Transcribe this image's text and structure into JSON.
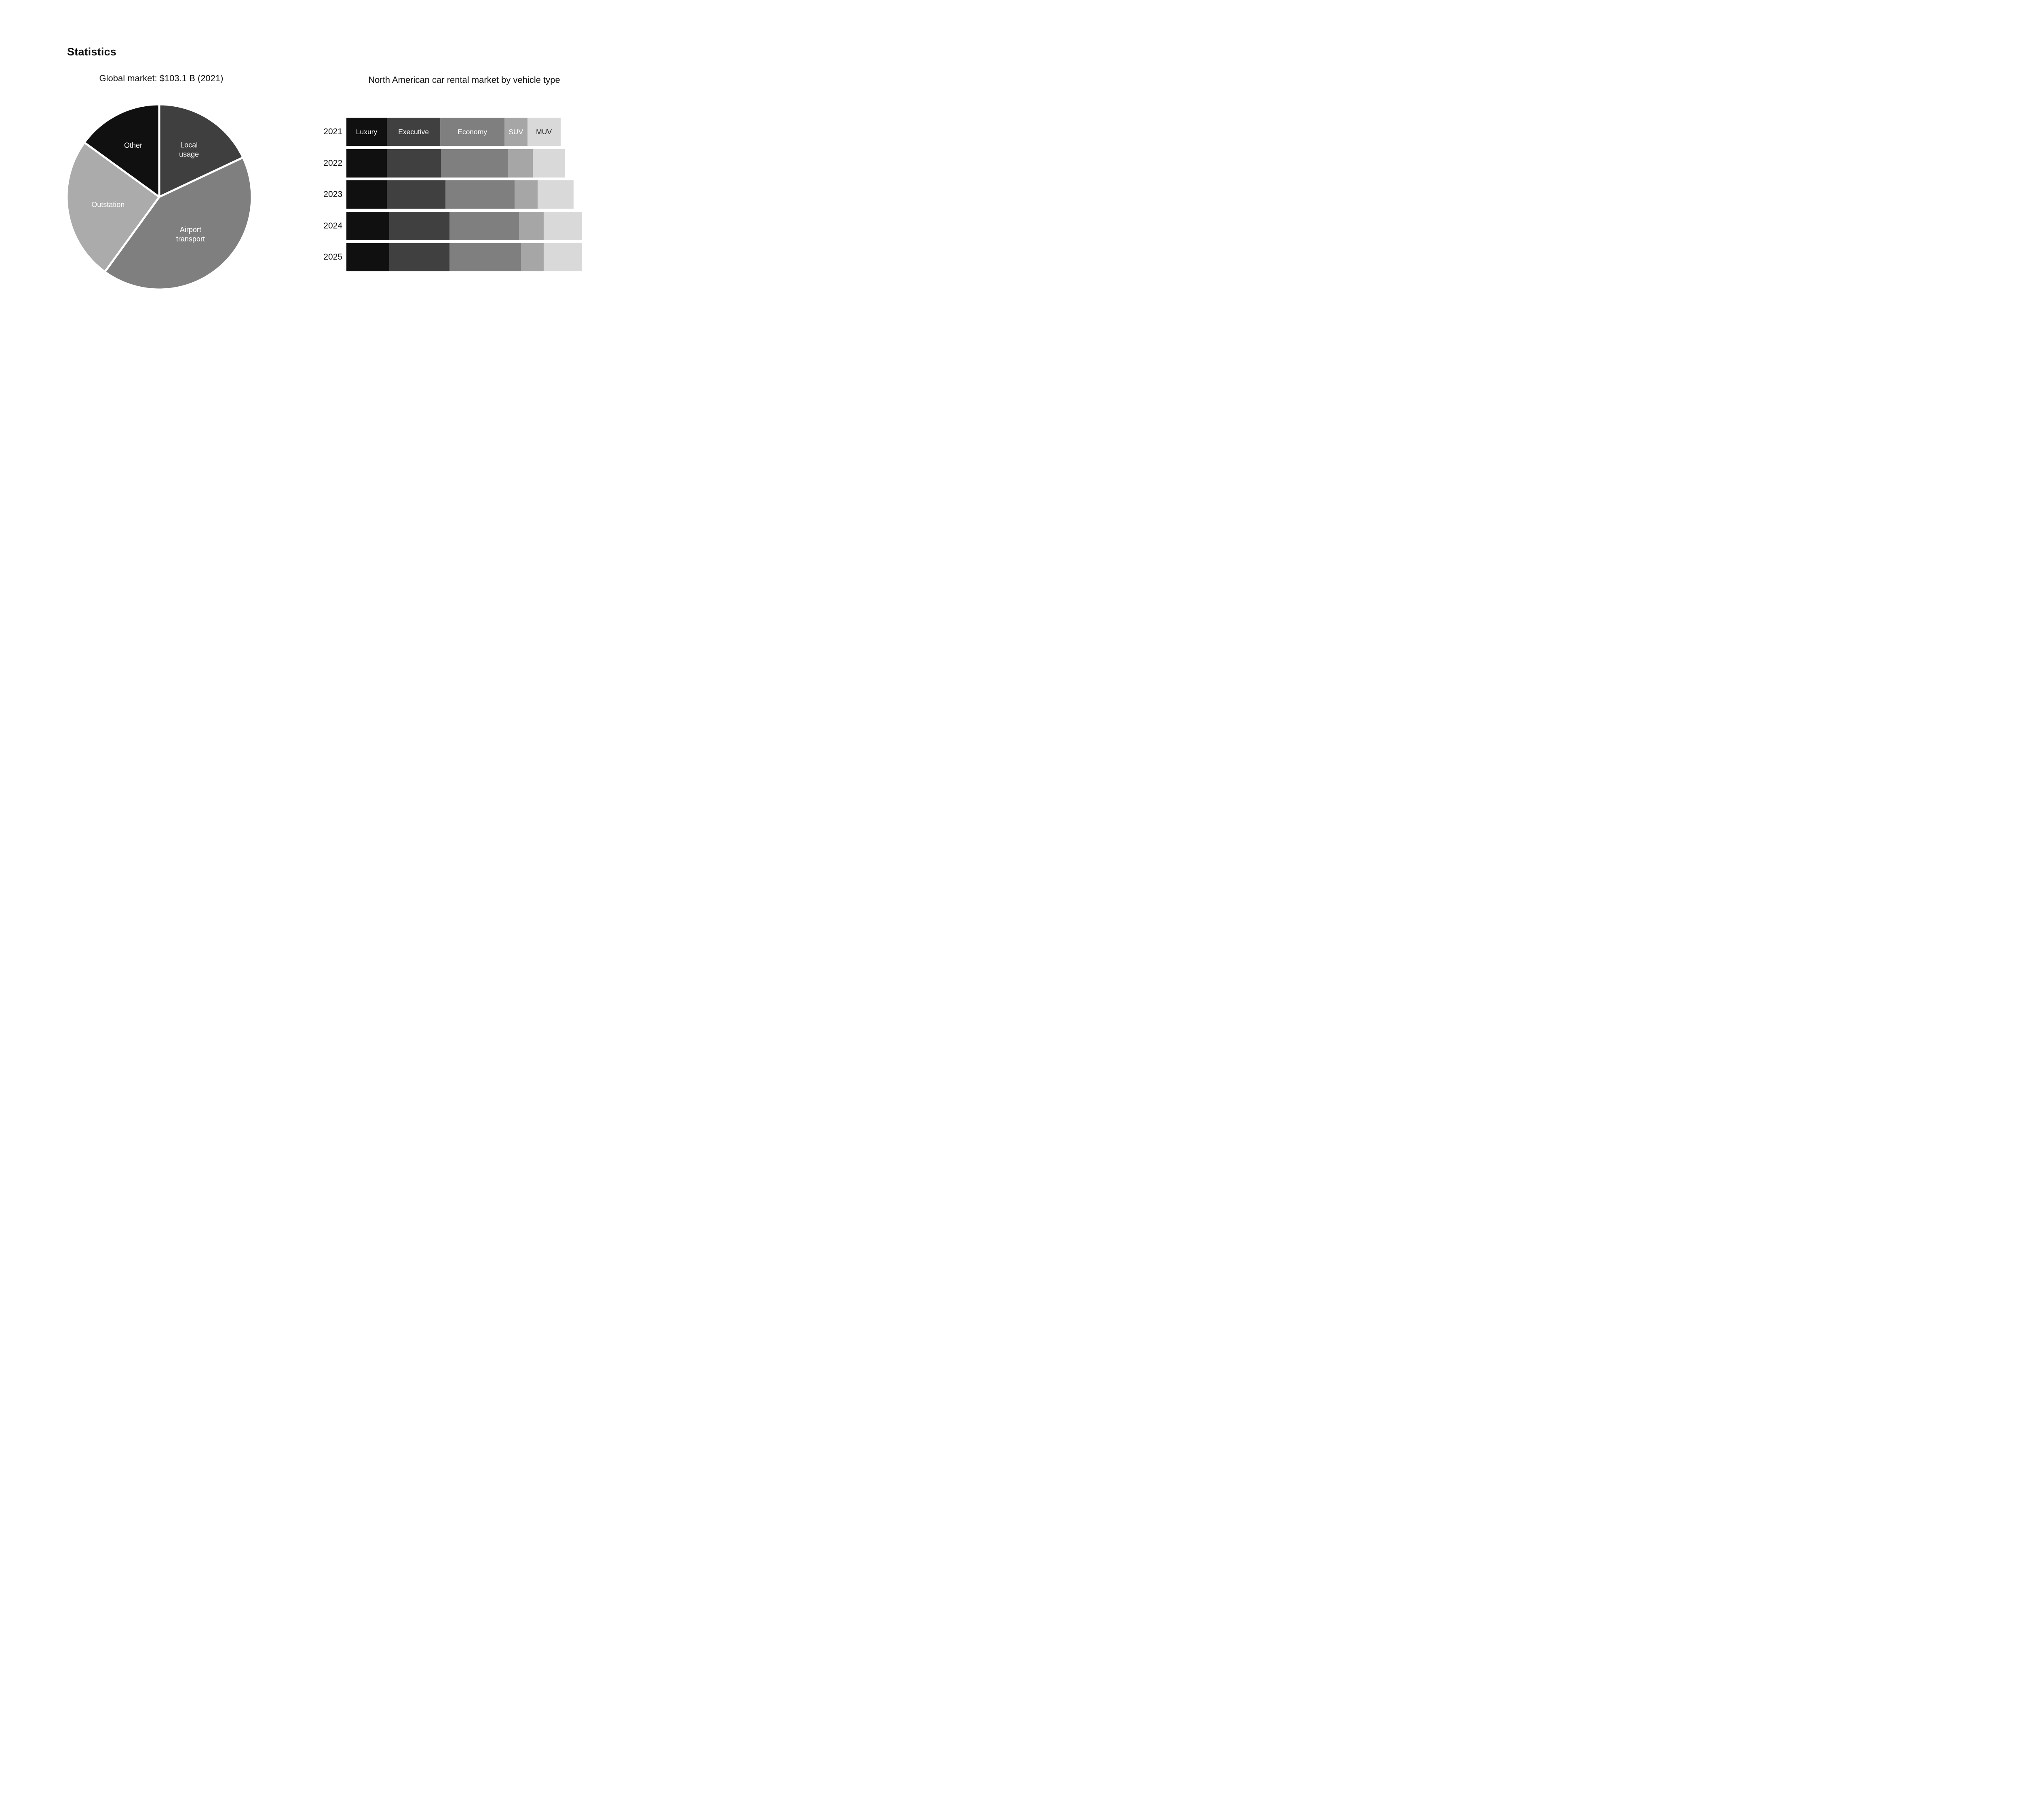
{
  "page": {
    "title": "Statistics",
    "background": "#ffffff"
  },
  "chart_data": [
    {
      "type": "pie",
      "title": "Global market: $103.1 B (2021)",
      "units": "percent share of global market, estimated from slice angles",
      "start_angle_deg_from_12_oclock": 0,
      "direction": "clockwise",
      "gap_color": "#ffffff",
      "slices": [
        {
          "label": "Local usage",
          "label_lines": [
            "Local",
            "usage"
          ],
          "value": 18,
          "color": "#3f3f3f",
          "label_color": "#ffffff",
          "label_radius_factor": 0.6
        },
        {
          "label": "Airport transport",
          "label_lines": [
            "Airport",
            "transport"
          ],
          "value": 42,
          "color": "#7f7f7f",
          "label_color": "#ffffff",
          "label_radius_factor": 0.53
        },
        {
          "label": "Outstation",
          "label_lines": [
            "Outstation"
          ],
          "value": 25,
          "color": "#ababab",
          "label_color": "#ffffff",
          "label_radius_factor": 0.56
        },
        {
          "label": "Other",
          "label_lines": [
            "Other"
          ],
          "value": 15,
          "color": "#101010",
          "label_color": "#ffffff",
          "label_radius_factor": 0.62
        }
      ]
    },
    {
      "type": "stacked_bar_horizontal",
      "title": "North American car rental market by vehicle type",
      "categories": [
        "2021",
        "2022",
        "2023",
        "2024",
        "2025"
      ],
      "units": "relative market size, 2021 total = 100, estimated from bar lengths (no numeric axis shown)",
      "legend": "none",
      "grid": "off",
      "series_labels_shown_on_row": "2021",
      "series": [
        {
          "name": "Luxury",
          "color": "#101010",
          "label_color": "#ffffff",
          "values": [
            18.9,
            18.9,
            18.9,
            20.0,
            20.0
          ]
        },
        {
          "name": "Executive",
          "color": "#404040",
          "label_color": "#ffffff",
          "values": [
            25.0,
            25.4,
            27.4,
            28.2,
            28.2
          ]
        },
        {
          "name": "Economy",
          "color": "#7f7f7f",
          "label_color": "#ffffff",
          "values": [
            30.0,
            31.3,
            32.4,
            32.5,
            33.4
          ]
        },
        {
          "name": "SUV",
          "color": "#a6a6a6",
          "label_color": "#ffffff",
          "values": [
            10.7,
            11.5,
            10.7,
            11.5,
            10.6
          ]
        },
        {
          "name": "MUV",
          "color": "#d9d9d9",
          "label_color": "#111111",
          "values": [
            15.5,
            15.1,
            16.8,
            18.0,
            18.0
          ]
        }
      ],
      "row_totals_relative": [
        100.1,
        102.2,
        106.2,
        110.2,
        110.2
      ]
    }
  ]
}
